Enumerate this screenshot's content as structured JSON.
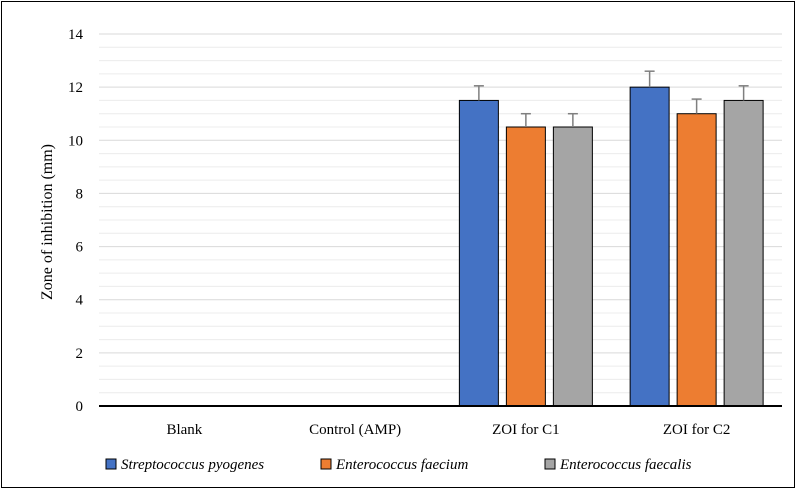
{
  "chart_data": {
    "type": "bar",
    "categories": [
      "Blank",
      "Control (AMP)",
      "ZOI for C1",
      "ZOI for C2"
    ],
    "series": [
      {
        "name": "Streptococcus pyogenes",
        "color": "#4472C4",
        "values": [
          0,
          0,
          11.5,
          12
        ],
        "errors": [
          0,
          0,
          0.55,
          0.6
        ]
      },
      {
        "name": "Enterococcus faecium",
        "color": "#ED7D31",
        "values": [
          0,
          0,
          10.5,
          11
        ],
        "errors": [
          0,
          0,
          0.5,
          0.55
        ]
      },
      {
        "name": "Enterococcus faecalis",
        "color": "#A5A5A5",
        "values": [
          0,
          0,
          10.5,
          11.5
        ],
        "errors": [
          0,
          0,
          0.5,
          0.55
        ]
      }
    ],
    "ylabel": "Zone of inhibition (mm)",
    "xlabel": "",
    "ylim": [
      0,
      14
    ],
    "yticks": [
      0,
      2,
      4,
      6,
      8,
      10,
      12,
      14
    ],
    "grid": true,
    "legend_position": "bottom"
  }
}
